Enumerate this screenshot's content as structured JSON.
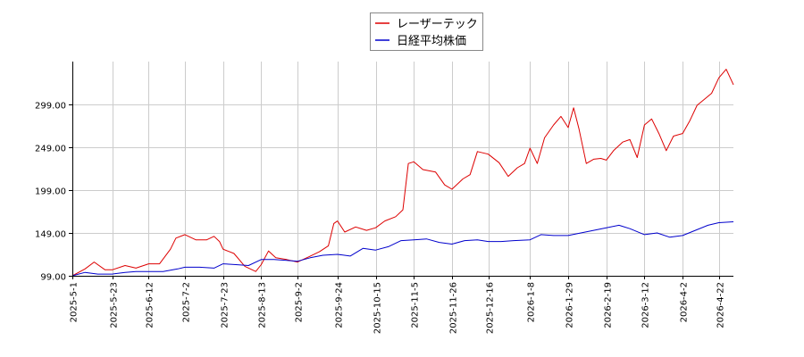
{
  "chart_data": {
    "type": "line",
    "grid": true,
    "legend_position": "top-center",
    "x_tick_labels": [
      "2025-5-1",
      "2025-5-23",
      "2025-6-12",
      "2025-7-2",
      "2025-7-23",
      "2025-8-13",
      "2025-9-2",
      "2025-9-24",
      "2025-10-15",
      "2025-11-5",
      "2025-11-26",
      "2025-12-16",
      "2026-1-8",
      "2026-1-29",
      "2026-2-19",
      "2026-3-12",
      "2026-4-2",
      "2026-4-22"
    ],
    "y_tick_labels": [
      "99.00",
      "149.00",
      "199.00",
      "249.00",
      "299.00"
    ],
    "y_ticks": [
      99,
      149,
      199,
      249,
      299
    ],
    "ylim": [
      99,
      349
    ],
    "series": [
      {
        "name": "レーザーテック",
        "color": "#dd0000",
        "points": [
          [
            "2025-5-1",
            99
          ],
          [
            "2025-5-8",
            107
          ],
          [
            "2025-5-13",
            115
          ],
          [
            "2025-5-19",
            106
          ],
          [
            "2025-5-23",
            106
          ],
          [
            "2025-5-30",
            111
          ],
          [
            "2025-6-5",
            108
          ],
          [
            "2025-6-12",
            113
          ],
          [
            "2025-6-18",
            113
          ],
          [
            "2025-6-24",
            130
          ],
          [
            "2025-6-27",
            143
          ],
          [
            "2025-7-2",
            147
          ],
          [
            "2025-7-8",
            141
          ],
          [
            "2025-7-14",
            141
          ],
          [
            "2025-7-18",
            145
          ],
          [
            "2025-7-21",
            139
          ],
          [
            "2025-7-23",
            130
          ],
          [
            "2025-7-29",
            125
          ],
          [
            "2025-8-4",
            110
          ],
          [
            "2025-8-10",
            104
          ],
          [
            "2025-8-13",
            112
          ],
          [
            "2025-8-17",
            128
          ],
          [
            "2025-8-21",
            120
          ],
          [
            "2025-8-27",
            118
          ],
          [
            "2025-9-2",
            115
          ],
          [
            "2025-9-8",
            121
          ],
          [
            "2025-9-14",
            127
          ],
          [
            "2025-9-19",
            134
          ],
          [
            "2025-9-22",
            160
          ],
          [
            "2025-9-24",
            163
          ],
          [
            "2025-9-28",
            150
          ],
          [
            "2025-10-4",
            156
          ],
          [
            "2025-10-10",
            152
          ],
          [
            "2025-10-15",
            155
          ],
          [
            "2025-10-20",
            163
          ],
          [
            "2025-10-26",
            168
          ],
          [
            "2025-10-30",
            176
          ],
          [
            "2025-11-2",
            230
          ],
          [
            "2025-11-5",
            232
          ],
          [
            "2025-11-10",
            223
          ],
          [
            "2025-11-17",
            220
          ],
          [
            "2025-11-22",
            205
          ],
          [
            "2025-11-26",
            200
          ],
          [
            "2025-12-2",
            212
          ],
          [
            "2025-12-6",
            217
          ],
          [
            "2025-12-10",
            244
          ],
          [
            "2025-12-16",
            241
          ],
          [
            "2025-12-22",
            231
          ],
          [
            "2025-12-27",
            215
          ],
          [
            "2026-1-1",
            225
          ],
          [
            "2026-1-5",
            230
          ],
          [
            "2026-1-8",
            248
          ],
          [
            "2026-1-12",
            230
          ],
          [
            "2026-1-16",
            260
          ],
          [
            "2026-1-21",
            275
          ],
          [
            "2026-1-25",
            285
          ],
          [
            "2026-1-29",
            272
          ],
          [
            "2026-2-1",
            295
          ],
          [
            "2026-2-4",
            270
          ],
          [
            "2026-2-8",
            230
          ],
          [
            "2026-2-12",
            235
          ],
          [
            "2026-2-16",
            236
          ],
          [
            "2026-2-19",
            234
          ],
          [
            "2026-2-23",
            245
          ],
          [
            "2026-2-28",
            255
          ],
          [
            "2026-3-4",
            258
          ],
          [
            "2026-3-8",
            237
          ],
          [
            "2026-3-12",
            275
          ],
          [
            "2026-3-16",
            282
          ],
          [
            "2026-3-20",
            265
          ],
          [
            "2026-3-24",
            245
          ],
          [
            "2026-3-28",
            262
          ],
          [
            "2026-4-2",
            265
          ],
          [
            "2026-4-6",
            280
          ],
          [
            "2026-4-10",
            298
          ],
          [
            "2026-4-14",
            305
          ],
          [
            "2026-4-18",
            312
          ],
          [
            "2026-4-22",
            330
          ],
          [
            "2026-4-26",
            340
          ],
          [
            "2026-4-30",
            322
          ]
        ]
      },
      {
        "name": "日経平均株価",
        "color": "#0000cc",
        "points": [
          [
            "2025-5-1",
            99
          ],
          [
            "2025-5-8",
            103
          ],
          [
            "2025-5-15",
            101
          ],
          [
            "2025-5-23",
            101
          ],
          [
            "2025-5-30",
            103
          ],
          [
            "2025-6-5",
            104
          ],
          [
            "2025-6-12",
            104
          ],
          [
            "2025-6-20",
            104
          ],
          [
            "2025-6-28",
            107
          ],
          [
            "2025-7-2",
            109
          ],
          [
            "2025-7-10",
            109
          ],
          [
            "2025-7-18",
            108
          ],
          [
            "2025-7-23",
            113
          ],
          [
            "2025-7-30",
            112
          ],
          [
            "2025-8-6",
            111
          ],
          [
            "2025-8-13",
            118
          ],
          [
            "2025-8-20",
            118
          ],
          [
            "2025-8-27",
            117
          ],
          [
            "2025-9-2",
            116
          ],
          [
            "2025-9-9",
            120
          ],
          [
            "2025-9-16",
            123
          ],
          [
            "2025-9-24",
            124
          ],
          [
            "2025-10-1",
            122
          ],
          [
            "2025-10-8",
            131
          ],
          [
            "2025-10-15",
            129
          ],
          [
            "2025-10-22",
            133
          ],
          [
            "2025-10-29",
            140
          ],
          [
            "2025-11-5",
            141
          ],
          [
            "2025-11-12",
            142
          ],
          [
            "2025-11-19",
            138
          ],
          [
            "2025-11-26",
            136
          ],
          [
            "2025-12-3",
            140
          ],
          [
            "2025-12-10",
            141
          ],
          [
            "2025-12-16",
            139
          ],
          [
            "2025-12-23",
            139
          ],
          [
            "2025-12-30",
            140
          ],
          [
            "2026-1-8",
            141
          ],
          [
            "2026-1-14",
            147
          ],
          [
            "2026-1-21",
            146
          ],
          [
            "2026-1-29",
            146
          ],
          [
            "2026-2-5",
            149
          ],
          [
            "2026-2-12",
            152
          ],
          [
            "2026-2-19",
            155
          ],
          [
            "2026-2-26",
            158
          ],
          [
            "2026-3-4",
            154
          ],
          [
            "2026-3-12",
            147
          ],
          [
            "2026-3-19",
            149
          ],
          [
            "2026-3-26",
            144
          ],
          [
            "2026-4-2",
            146
          ],
          [
            "2026-4-9",
            152
          ],
          [
            "2026-4-16",
            158
          ],
          [
            "2026-4-22",
            161
          ],
          [
            "2026-4-30",
            162
          ]
        ]
      }
    ]
  }
}
